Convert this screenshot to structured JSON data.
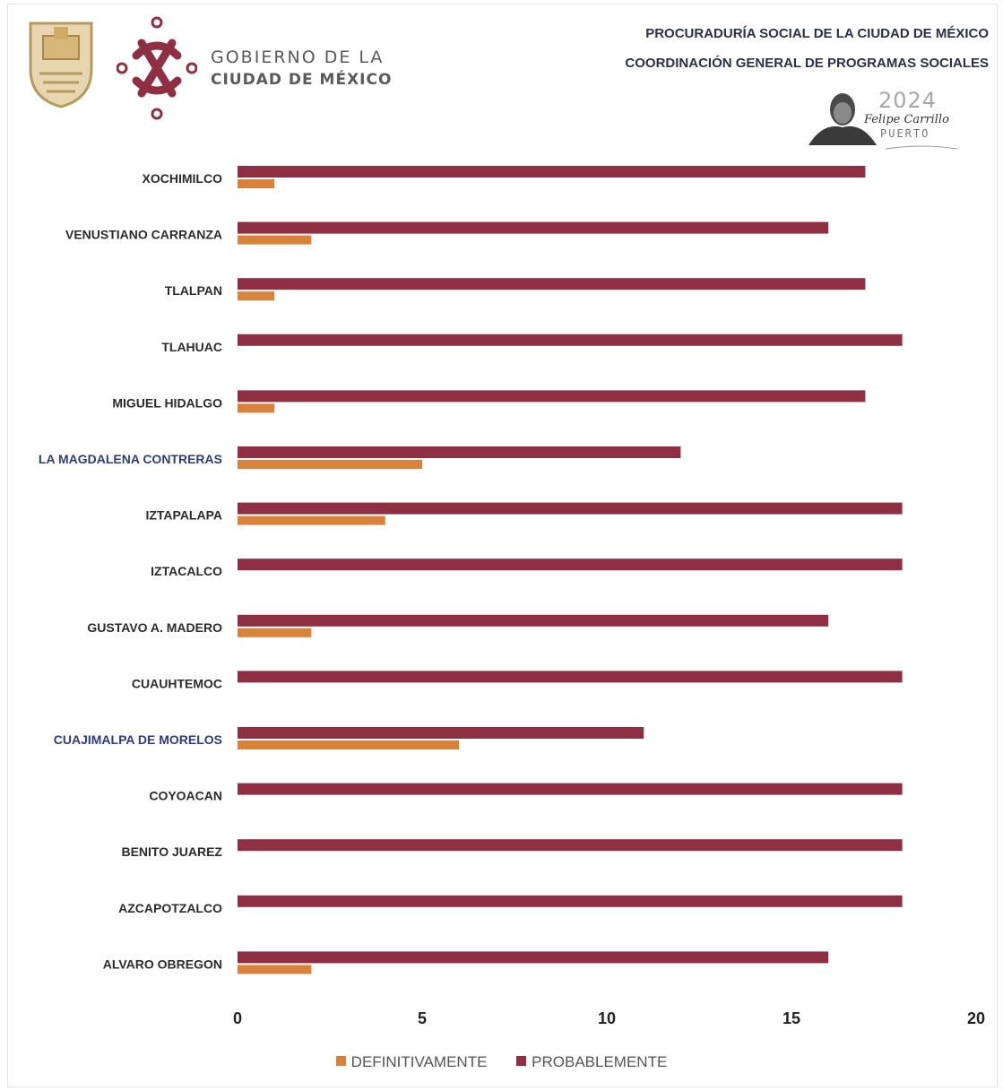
{
  "header": {
    "gov_line1": "GOBIERNO DE LA",
    "gov_line2": "CIUDAD DE MÉXICO",
    "right_line1": "PROCURADURÍA SOCIAL DE LA CIUDAD DE MÉXICO",
    "right_line2": "COORDINACIÓN GENERAL DE PROGRAMAS SOCIALES",
    "emblem_year": "2024",
    "emblem_name": "Felipe Carrillo",
    "emblem_sub": "PUERTO"
  },
  "colors": {
    "definitivamente": "#d9823b",
    "probablemente": "#8e2f43",
    "label_default": "#2b2b2b",
    "label_highlight": "#2e3d7a",
    "axis_text": "#222222"
  },
  "chart_data": {
    "type": "bar",
    "orientation": "horizontal",
    "title": "",
    "xlabel": "",
    "ylabel": "",
    "xlim": [
      0,
      20
    ],
    "xticks": [
      0,
      5,
      10,
      15,
      20
    ],
    "grid": false,
    "legend_position": "bottom",
    "categories": [
      "XOCHIMILCO",
      "VENUSTIANO CARRANZA",
      "TLALPAN",
      "TLAHUAC",
      "MIGUEL HIDALGO",
      "LA MAGDALENA CONTRERAS",
      "IZTAPALAPA",
      "IZTACALCO",
      "GUSTAVO A. MADERO",
      "CUAUHTEMOC",
      "CUAJIMALPA DE MORELOS",
      "COYOACAN",
      "BENITO JUAREZ",
      "AZCAPOTZALCO",
      "ALVARO OBREGON"
    ],
    "highlighted_categories": [
      "LA MAGDALENA CONTRERAS",
      "CUAJIMALPA DE MORELOS"
    ],
    "series": [
      {
        "name": "PROBABLEMENTE",
        "values": [
          17,
          16,
          17,
          18,
          17,
          12,
          18,
          18,
          16,
          18,
          11,
          18,
          18,
          18,
          16
        ]
      },
      {
        "name": "DEFINITIVAMENTE",
        "values": [
          1,
          2,
          1,
          0,
          1,
          5,
          4,
          0,
          2,
          0,
          6,
          0,
          0,
          0,
          2
        ]
      }
    ]
  },
  "legend": {
    "definitivamente": "DEFINITIVAMENTE",
    "probablemente": "PROBABLEMENTE"
  }
}
